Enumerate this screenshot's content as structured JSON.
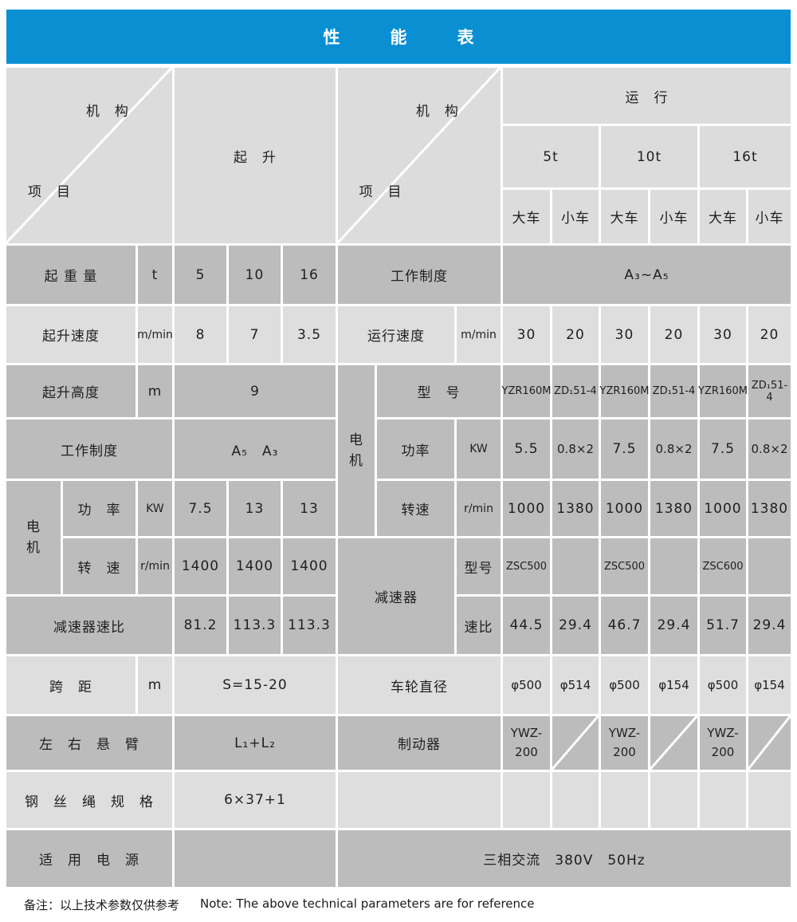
{
  "title": "性　　　能　　　表",
  "colors": {
    "accent_blue": "#0a90d2",
    "cell_dark": "#bcbcbc",
    "cell_light": "#dedede",
    "header_cell": "#dcdcdc"
  },
  "header": {
    "mechanism": "机　构",
    "item": "项　目",
    "hoisting": "起　升",
    "travel": "运　行",
    "cap_5t": "5t",
    "cap_10t": "10t",
    "cap_16t": "16t",
    "big_car": "大车",
    "small_car": "小车"
  },
  "left": {
    "lifting_capacity": {
      "label": "起 重 量",
      "unit": "t",
      "values": [
        "5",
        "10",
        "16"
      ]
    },
    "hoisting_speed": {
      "label": "起升速度",
      "unit": "m/min",
      "values": [
        "8",
        "7",
        "3.5"
      ]
    },
    "lifting_height": {
      "label": "起升高度",
      "unit": "m",
      "value": "9"
    },
    "duty_class": {
      "label": "工作制度",
      "value": "A₅　A₃"
    },
    "motor": {
      "label": "电\n机",
      "power": {
        "label": "功　率",
        "unit": "KW",
        "values": [
          "7.5",
          "13",
          "13"
        ]
      },
      "speed": {
        "label": "转　速",
        "unit": "r/min",
        "values": [
          "1400",
          "1400",
          "1400"
        ]
      }
    },
    "reducer_ratio": {
      "label": "减速器速比",
      "values": [
        "81.2",
        "113.3",
        "113.3"
      ]
    },
    "span": {
      "label": "跨　距",
      "unit": "m",
      "value": "S=15-20"
    },
    "cantilever": {
      "label": "左　右　悬　臂",
      "value": "L₁+L₂"
    },
    "wire_rope": {
      "label": "钢　丝　绳　规　格",
      "value": "6×37+1"
    },
    "power_supply": {
      "label": "适　用　电　源",
      "value": ""
    }
  },
  "right": {
    "duty_class": {
      "label": "工作制度",
      "value": "A₃~A₅"
    },
    "travel_speed": {
      "label": "运行速度",
      "unit": "m/min",
      "values": [
        "30",
        "20",
        "30",
        "20",
        "30",
        "20"
      ]
    },
    "motor": {
      "label": "电\n机",
      "model": {
        "label": "型　号",
        "values": [
          "YZR160M",
          "ZD₁51-4",
          "YZR160M",
          "ZD₁51-4",
          "YZR160M",
          "ZD₁51-4"
        ]
      },
      "power": {
        "label": "功率",
        "unit": "KW",
        "values": [
          "5.5",
          "0.8×2",
          "7.5",
          "0.8×2",
          "7.5",
          "0.8×2"
        ]
      },
      "speed": {
        "label": "转速",
        "unit": "r/min",
        "values": [
          "1000",
          "1380",
          "1000",
          "1380",
          "1000",
          "1380"
        ]
      }
    },
    "reducer": {
      "label": "减速器",
      "model": {
        "label": "型号",
        "values": [
          "ZSC500",
          "",
          "ZSC500",
          "",
          "ZSC600",
          ""
        ]
      },
      "ratio": {
        "label": "速比",
        "values": [
          "44.5",
          "29.4",
          "46.7",
          "29.4",
          "51.7",
          "29.4"
        ]
      }
    },
    "wheel_diameter": {
      "label": "车轮直径",
      "values": [
        "φ500",
        "φ514",
        "φ500",
        "φ154",
        "φ500",
        "φ154"
      ]
    },
    "brake": {
      "label": "制动器",
      "values": [
        "YWZ-\n200",
        "",
        "YWZ-\n200",
        "",
        "YWZ-\n200",
        ""
      ]
    },
    "power_supply": {
      "value": "三相交流　380V　50Hz"
    }
  },
  "footer": {
    "note_cn": "备注：以上技术参数仅供参考",
    "note_en": "Note: The above technical parameters are for reference"
  }
}
